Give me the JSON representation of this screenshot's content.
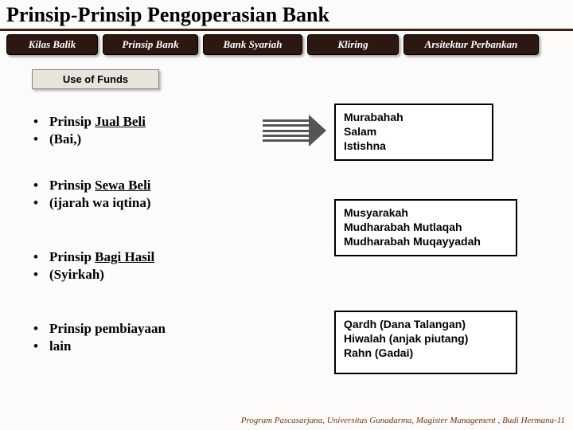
{
  "title": "Prinsip-Prinsip Pengoperasian Bank",
  "tabs": {
    "t1": "Kilas Balik",
    "t2": "Prinsip Bank",
    "t3": "Bank Syariah",
    "t4": "Kliring",
    "t5": "Arsitektur Perbankan"
  },
  "subheader": "Use of Funds",
  "left": {
    "b1a": "Prinsip ",
    "b1a_u": "Jual Beli",
    "b1b": "(Bai,)",
    "b2a": "Prinsip ",
    "b2a_u": "Sewa Beli",
    "b2b": "(ijarah wa iqtina)",
    "b3a": "Prinsip ",
    "b3a_u": "Bagi Hasil",
    "b3b": "(Syirkah)",
    "b4a": "Prinsip pembiayaan",
    "b4b": "lain"
  },
  "right": {
    "r1l1": "Murabahah",
    "r1l2": "Salam",
    "r1l3": "Istishna",
    "r2l1": "Musyarakah",
    "r2l2": "Mudharabah Mutlaqah",
    "r2l3": "Mudharabah Muqayyadah",
    "r3l1": "Qardh (Dana Talangan)",
    "r3l2": "Hiwalah (anjak piutang)",
    "r3l3": "Rahn (Gadai)"
  },
  "footer": "Program Pascasarjana, Universitas Gunadarma,  Magister Management ,  Budi Hermana-11",
  "colors": {
    "tab_bg": "#2c1810",
    "accent": "#402010",
    "page_bg": "#fdfbf9",
    "arrow": "#555555"
  }
}
